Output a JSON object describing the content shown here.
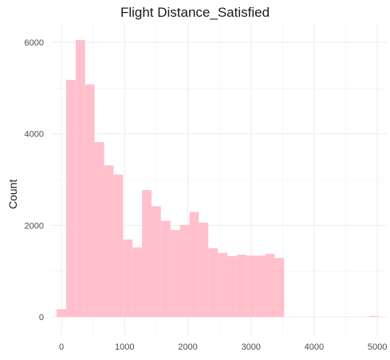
{
  "chart_data": {
    "type": "bar",
    "title": "Flight Distance_Satisfied",
    "xlabel": "",
    "ylabel": "Count",
    "xlim": [
      -165,
      5150
    ],
    "ylim": [
      -400,
      6400
    ],
    "x_ticks": [
      0,
      1000,
      2000,
      3000,
      4000,
      5000
    ],
    "y_ticks": [
      0,
      2000,
      4000,
      6000
    ],
    "grid": true,
    "bin_width": 150,
    "bar_color": "#ffc0cb",
    "bins": [
      {
        "x0": -75,
        "x1": 75,
        "count": 170
      },
      {
        "x0": 75,
        "x1": 225,
        "count": 5180
      },
      {
        "x0": 225,
        "x1": 375,
        "count": 6050
      },
      {
        "x0": 375,
        "x1": 525,
        "count": 5080
      },
      {
        "x0": 525,
        "x1": 675,
        "count": 3820
      },
      {
        "x0": 675,
        "x1": 825,
        "count": 3310
      },
      {
        "x0": 825,
        "x1": 975,
        "count": 3110
      },
      {
        "x0": 975,
        "x1": 1125,
        "count": 1690
      },
      {
        "x0": 1125,
        "x1": 1275,
        "count": 1520
      },
      {
        "x0": 1275,
        "x1": 1425,
        "count": 2770
      },
      {
        "x0": 1425,
        "x1": 1575,
        "count": 2420
      },
      {
        "x0": 1575,
        "x1": 1725,
        "count": 2100
      },
      {
        "x0": 1725,
        "x1": 1875,
        "count": 1900
      },
      {
        "x0": 1875,
        "x1": 2025,
        "count": 2010
      },
      {
        "x0": 2025,
        "x1": 2175,
        "count": 2290
      },
      {
        "x0": 2175,
        "x1": 2325,
        "count": 2060
      },
      {
        "x0": 2325,
        "x1": 2475,
        "count": 1500
      },
      {
        "x0": 2475,
        "x1": 2625,
        "count": 1400
      },
      {
        "x0": 2625,
        "x1": 2775,
        "count": 1330
      },
      {
        "x0": 2775,
        "x1": 2925,
        "count": 1360
      },
      {
        "x0": 2925,
        "x1": 3075,
        "count": 1340
      },
      {
        "x0": 3075,
        "x1": 3225,
        "count": 1340
      },
      {
        "x0": 3225,
        "x1": 3375,
        "count": 1380
      },
      {
        "x0": 3375,
        "x1": 3525,
        "count": 1290
      },
      {
        "x0": 4875,
        "x1": 5025,
        "count": 20
      }
    ]
  }
}
